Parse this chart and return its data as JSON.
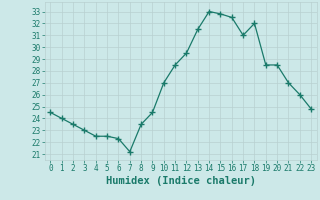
{
  "x": [
    0,
    1,
    2,
    3,
    4,
    5,
    6,
    7,
    8,
    9,
    10,
    11,
    12,
    13,
    14,
    15,
    16,
    17,
    18,
    19,
    20,
    21,
    22,
    23
  ],
  "y": [
    24.5,
    24.0,
    23.5,
    23.0,
    22.5,
    22.5,
    22.3,
    21.2,
    23.5,
    24.5,
    27.0,
    28.5,
    29.5,
    31.5,
    33.0,
    32.8,
    32.5,
    31.0,
    32.0,
    28.5,
    28.5,
    27.0,
    26.0,
    24.8
  ],
  "line_color": "#1a7a6a",
  "marker": "+",
  "marker_size": 4,
  "bg_color": "#cce8e8",
  "grid_color": "#b8d0d0",
  "xlabel": "Humidex (Indice chaleur)",
  "ylabel_ticks": [
    21,
    22,
    23,
    24,
    25,
    26,
    27,
    28,
    29,
    30,
    31,
    32,
    33
  ],
  "ylim": [
    20.5,
    33.8
  ],
  "xlim": [
    -0.5,
    23.5
  ],
  "tick_color": "#1a7a6a",
  "tick_fontsize": 5.5,
  "xlabel_fontsize": 7.5,
  "marker_linewidth": 1.0,
  "line_linewidth": 0.9
}
